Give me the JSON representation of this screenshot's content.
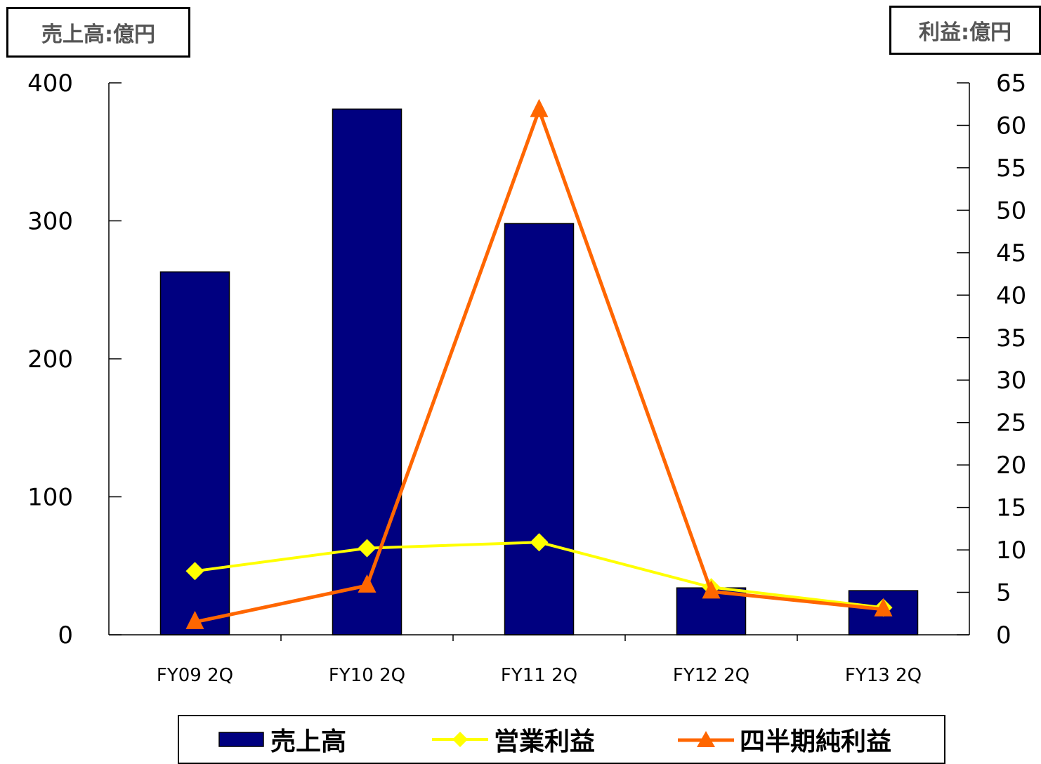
{
  "unit_left": "売上高:億円",
  "unit_right": "利益:億円",
  "colors": {
    "sales": "#000080",
    "operating": "#ffff00",
    "net": "#ff6600"
  },
  "chart_data": {
    "type": "bar",
    "categories": [
      "FY09 2Q",
      "FY10 2Q",
      "FY11 2Q",
      "FY12 2Q",
      "FY13 2Q"
    ],
    "series": [
      {
        "name": "売上高",
        "type": "bar",
        "axis": "left",
        "values": [
          263,
          381,
          298,
          34,
          32
        ]
      },
      {
        "name": "営業利益",
        "type": "line",
        "marker": "diamond",
        "axis": "right",
        "values": [
          7.5,
          10.2,
          10.9,
          5.6,
          3.2
        ]
      },
      {
        "name": "四半期純利益",
        "type": "line",
        "marker": "triangle",
        "axis": "right",
        "values": [
          1.5,
          5.8,
          61.8,
          5.1,
          3.0
        ]
      }
    ],
    "y_left": {
      "label": "売上高:億円",
      "ylim": [
        0,
        400
      ],
      "ticks": [
        0,
        100,
        200,
        300,
        400
      ]
    },
    "y_right": {
      "label": "利益:億円",
      "ylim": [
        0,
        65
      ],
      "ticks": [
        0,
        5,
        10,
        15,
        20,
        25,
        30,
        35,
        40,
        45,
        50,
        55,
        60,
        65
      ]
    },
    "grid": false,
    "legend": "bottom"
  }
}
